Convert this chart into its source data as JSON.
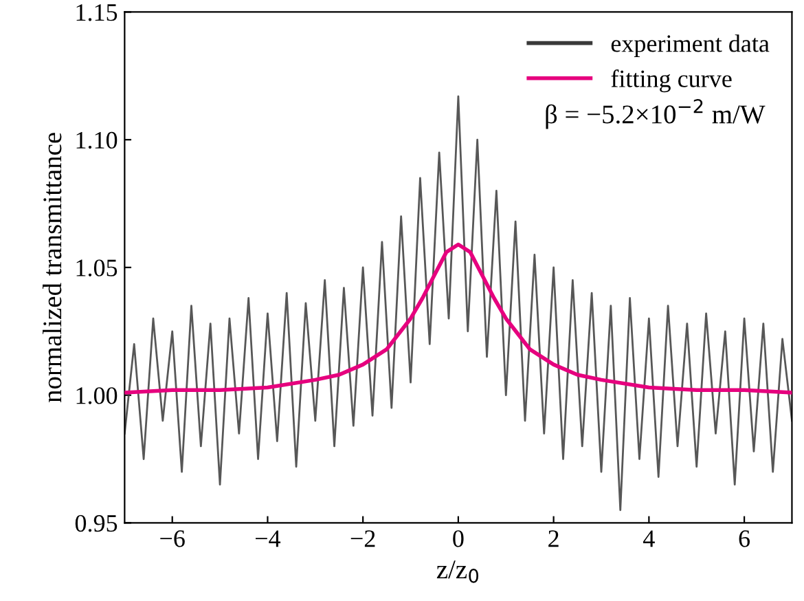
{
  "chart_data": {
    "type": "line",
    "xlabel": "z/z$_{0}$",
    "ylabel": "normalized transmittance",
    "annotations": [
      "β = −5.2×10$^{−2}$ m/W"
    ],
    "xlim": [
      -7,
      7
    ],
    "ylim": [
      0.95,
      1.15
    ],
    "xticks": [
      {
        "value": -6,
        "label": "−6"
      },
      {
        "value": -4,
        "label": "−4"
      },
      {
        "value": -2,
        "label": "−2"
      },
      0,
      2,
      4,
      6
    ],
    "yticks": [
      {
        "value": 0.95,
        "label": "0.95"
      },
      {
        "value": 1.0,
        "label": "1.00"
      },
      {
        "value": 1.05,
        "label": "1.05"
      },
      {
        "value": 1.1,
        "label": "1.10"
      },
      {
        "value": 1.15,
        "label": "1.15"
      }
    ],
    "grid": false,
    "legend": "top right",
    "marker": "none",
    "line_style": "solid",
    "series": [
      {
        "name": "experiment data",
        "color": "#3a3a3a",
        "x": [
          -7.0,
          -6.8,
          -6.6,
          -6.4,
          -6.2,
          -6.0,
          -5.8,
          -5.6,
          -5.4,
          -5.2,
          -5.0,
          -4.8,
          -4.6,
          -4.4,
          -4.2,
          -4.0,
          -3.8,
          -3.6,
          -3.4,
          -3.2,
          -3.0,
          -2.8,
          -2.6,
          -2.4,
          -2.2,
          -2.0,
          -1.8,
          -1.6,
          -1.4,
          -1.2,
          -1.0,
          -0.8,
          -0.6,
          -0.4,
          -0.2,
          0.0,
          0.2,
          0.4,
          0.6,
          0.8,
          1.0,
          1.2,
          1.4,
          1.6,
          1.8,
          2.0,
          2.2,
          2.4,
          2.6,
          2.8,
          3.0,
          3.2,
          3.4,
          3.6,
          3.8,
          4.0,
          4.2,
          4.4,
          4.6,
          4.8,
          5.0,
          5.2,
          5.4,
          5.6,
          5.8,
          6.0,
          6.2,
          6.4,
          6.6,
          6.8,
          7.0
        ],
        "values": [
          0.985,
          1.02,
          0.975,
          1.03,
          0.99,
          1.025,
          0.97,
          1.035,
          0.98,
          1.028,
          0.965,
          1.03,
          0.985,
          1.038,
          0.975,
          1.032,
          0.982,
          1.04,
          0.972,
          1.036,
          0.99,
          1.045,
          0.98,
          1.042,
          0.988,
          1.05,
          0.992,
          1.06,
          0.995,
          1.07,
          1.005,
          1.085,
          1.02,
          1.095,
          1.03,
          1.117,
          1.025,
          1.1,
          1.015,
          1.08,
          1.0,
          1.068,
          0.99,
          1.055,
          0.985,
          1.05,
          0.975,
          1.045,
          0.98,
          1.04,
          0.97,
          1.035,
          0.955,
          1.038,
          0.975,
          1.03,
          0.968,
          1.035,
          0.98,
          1.028,
          0.972,
          1.032,
          0.985,
          1.025,
          0.965,
          1.03,
          0.978,
          1.028,
          0.97,
          1.022,
          0.99
        ]
      },
      {
        "name": "fitting curve",
        "color": "#e6007e",
        "x": [
          -7,
          -6,
          -5,
          -4,
          -3,
          -2.5,
          -2,
          -1.5,
          -1,
          -0.75,
          -0.5,
          -0.25,
          0,
          0.25,
          0.5,
          0.75,
          1,
          1.5,
          2,
          2.5,
          3,
          4,
          5,
          6,
          7
        ],
        "values": [
          1.001,
          1.002,
          1.002,
          1.003,
          1.006,
          1.008,
          1.012,
          1.018,
          1.03,
          1.038,
          1.047,
          1.056,
          1.059,
          1.056,
          1.047,
          1.038,
          1.03,
          1.018,
          1.012,
          1.008,
          1.006,
          1.003,
          1.002,
          1.002,
          1.001
        ]
      }
    ]
  }
}
